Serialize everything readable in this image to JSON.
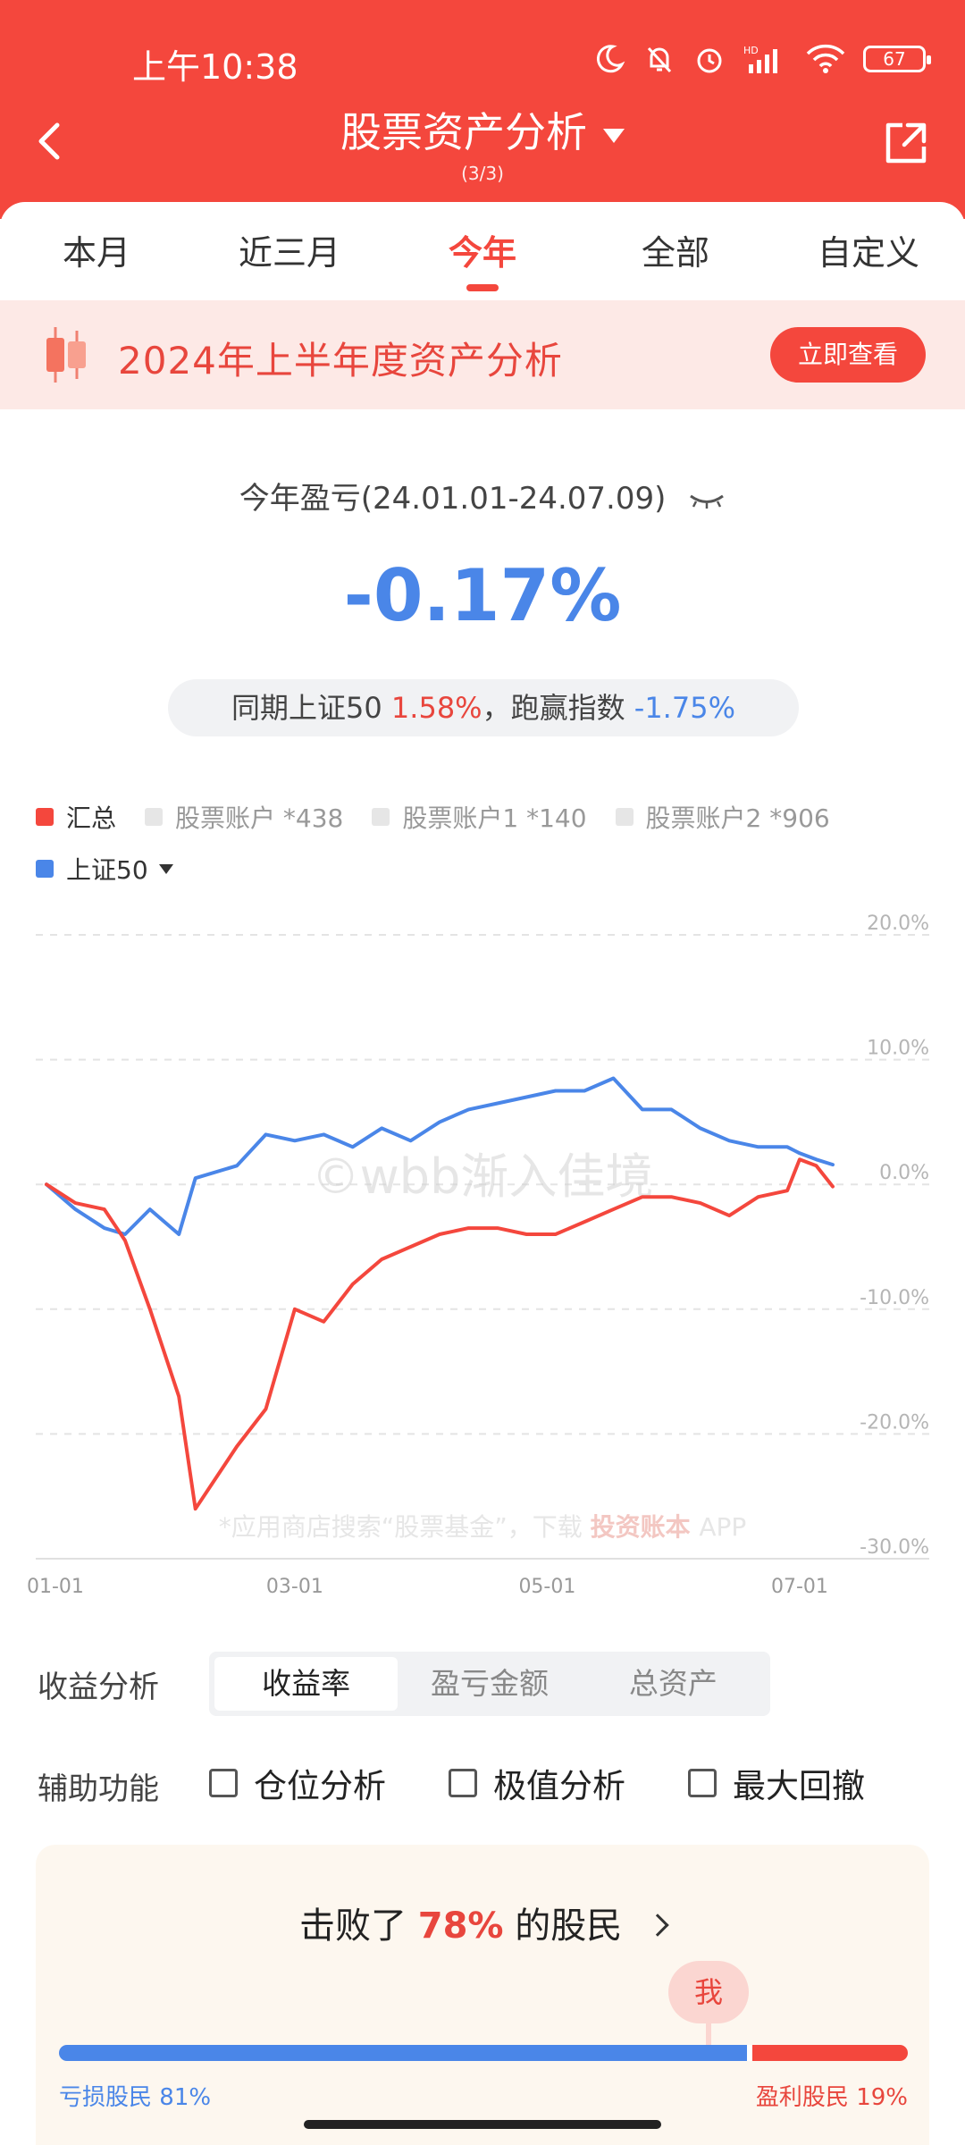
{
  "status_bar": {
    "time": "上午10:38",
    "battery": "67",
    "icons": [
      "moon-icon",
      "bell-off-icon",
      "alarm-icon",
      "hd-signal-icon",
      "wifi-icon",
      "battery-icon"
    ]
  },
  "header": {
    "title": "股票资产分析",
    "subtitle": "(3/3)",
    "back_icon": "chevron-left-icon",
    "share_icon": "share-icon"
  },
  "tabs": [
    {
      "label": "本月",
      "active": false
    },
    {
      "label": "近三月",
      "active": false
    },
    {
      "label": "今年",
      "active": true
    },
    {
      "label": "全部",
      "active": false
    },
    {
      "label": "自定义",
      "active": false
    }
  ],
  "banner": {
    "text": "2024年上半年度资产分析",
    "button": "立即查看",
    "icon": "candlestick-icon"
  },
  "summary": {
    "period_label": "今年盈亏(24.01.01-24.07.09)",
    "return_pct": "-0.17%",
    "compare_prefix": "同期上证50",
    "index_pct": "1.58%",
    "compare_mid": "，跑赢指数",
    "excess_pct": "-1.75%"
  },
  "legend": {
    "items": [
      {
        "label": "汇总",
        "color": "#f4473d",
        "active": true
      },
      {
        "label": "股票账户 *438",
        "color": "#e6e6e6",
        "active": false
      },
      {
        "label": "股票账户1 *140",
        "color": "#e6e6e6",
        "active": false
      },
      {
        "label": "股票账户2 *906",
        "color": "#e6e6e6",
        "active": false
      }
    ],
    "benchmark": {
      "label": "上证50",
      "color": "#4a86e8",
      "active": true
    }
  },
  "chart_data": {
    "type": "line",
    "ylim": [
      -30,
      20
    ],
    "y_ticks": [
      "20.0%",
      "10.0%",
      "0.0%",
      "-10.0%",
      "-20.0%",
      "-30.0%"
    ],
    "x_ticks": [
      "01-01",
      "03-01",
      "05-01",
      "07-01"
    ],
    "watermark": "©wbb渐入佳境",
    "footer_note": "*应用商店搜索“股票基金”，下载",
    "footer_brand": "投资账本",
    "footer_app": "APP",
    "x_dates": [
      "01-01",
      "01-08",
      "01-15",
      "01-20",
      "01-26",
      "02-02",
      "02-06",
      "02-16",
      "02-23",
      "03-01",
      "03-08",
      "03-15",
      "03-22",
      "03-29",
      "04-05",
      "04-12",
      "04-19",
      "04-26",
      "05-03",
      "05-10",
      "05-17",
      "05-24",
      "05-31",
      "06-07",
      "06-14",
      "06-21",
      "06-28",
      "07-01",
      "07-05",
      "07-09"
    ],
    "series": [
      {
        "name": "汇总",
        "color": "#f4473d",
        "values": [
          0.0,
          -1.5,
          -2.0,
          -4.5,
          -10.0,
          -17.0,
          -26.0,
          -21.0,
          -18.0,
          -10.0,
          -11.0,
          -8.0,
          -6.0,
          -5.0,
          -4.0,
          -3.5,
          -3.5,
          -4.0,
          -4.0,
          -3.0,
          -2.0,
          -1.0,
          -1.0,
          -1.5,
          -2.5,
          -1.0,
          -0.5,
          2.0,
          1.5,
          -0.17
        ]
      },
      {
        "name": "上证50",
        "color": "#4a86e8",
        "values": [
          0.0,
          -2.0,
          -3.5,
          -4.0,
          -2.0,
          -4.0,
          0.5,
          1.5,
          4.0,
          3.5,
          4.0,
          3.0,
          4.5,
          3.5,
          5.0,
          6.0,
          6.5,
          7.0,
          7.5,
          7.5,
          8.5,
          6.0,
          6.0,
          4.5,
          3.5,
          3.0,
          3.0,
          2.5,
          2.0,
          1.58
        ]
      }
    ]
  },
  "controls": {
    "analysis_label": "收益分析",
    "segments": [
      {
        "label": "收益率",
        "active": true
      },
      {
        "label": "盈亏金额",
        "active": false
      },
      {
        "label": "总资产",
        "active": false
      }
    ],
    "aux_label": "辅助功能",
    "checks": [
      {
        "label": "仓位分析",
        "checked": false
      },
      {
        "label": "极值分析",
        "checked": false
      },
      {
        "label": "最大回撤",
        "checked": false
      }
    ]
  },
  "beat": {
    "prefix": "击败了",
    "pct": "78%",
    "suffix": "的股民",
    "me": "我",
    "loss_label": "亏损股民",
    "loss_pct": "81%",
    "gain_label": "盈利股民",
    "gain_pct": "19%",
    "loss_share": 0.81
  }
}
